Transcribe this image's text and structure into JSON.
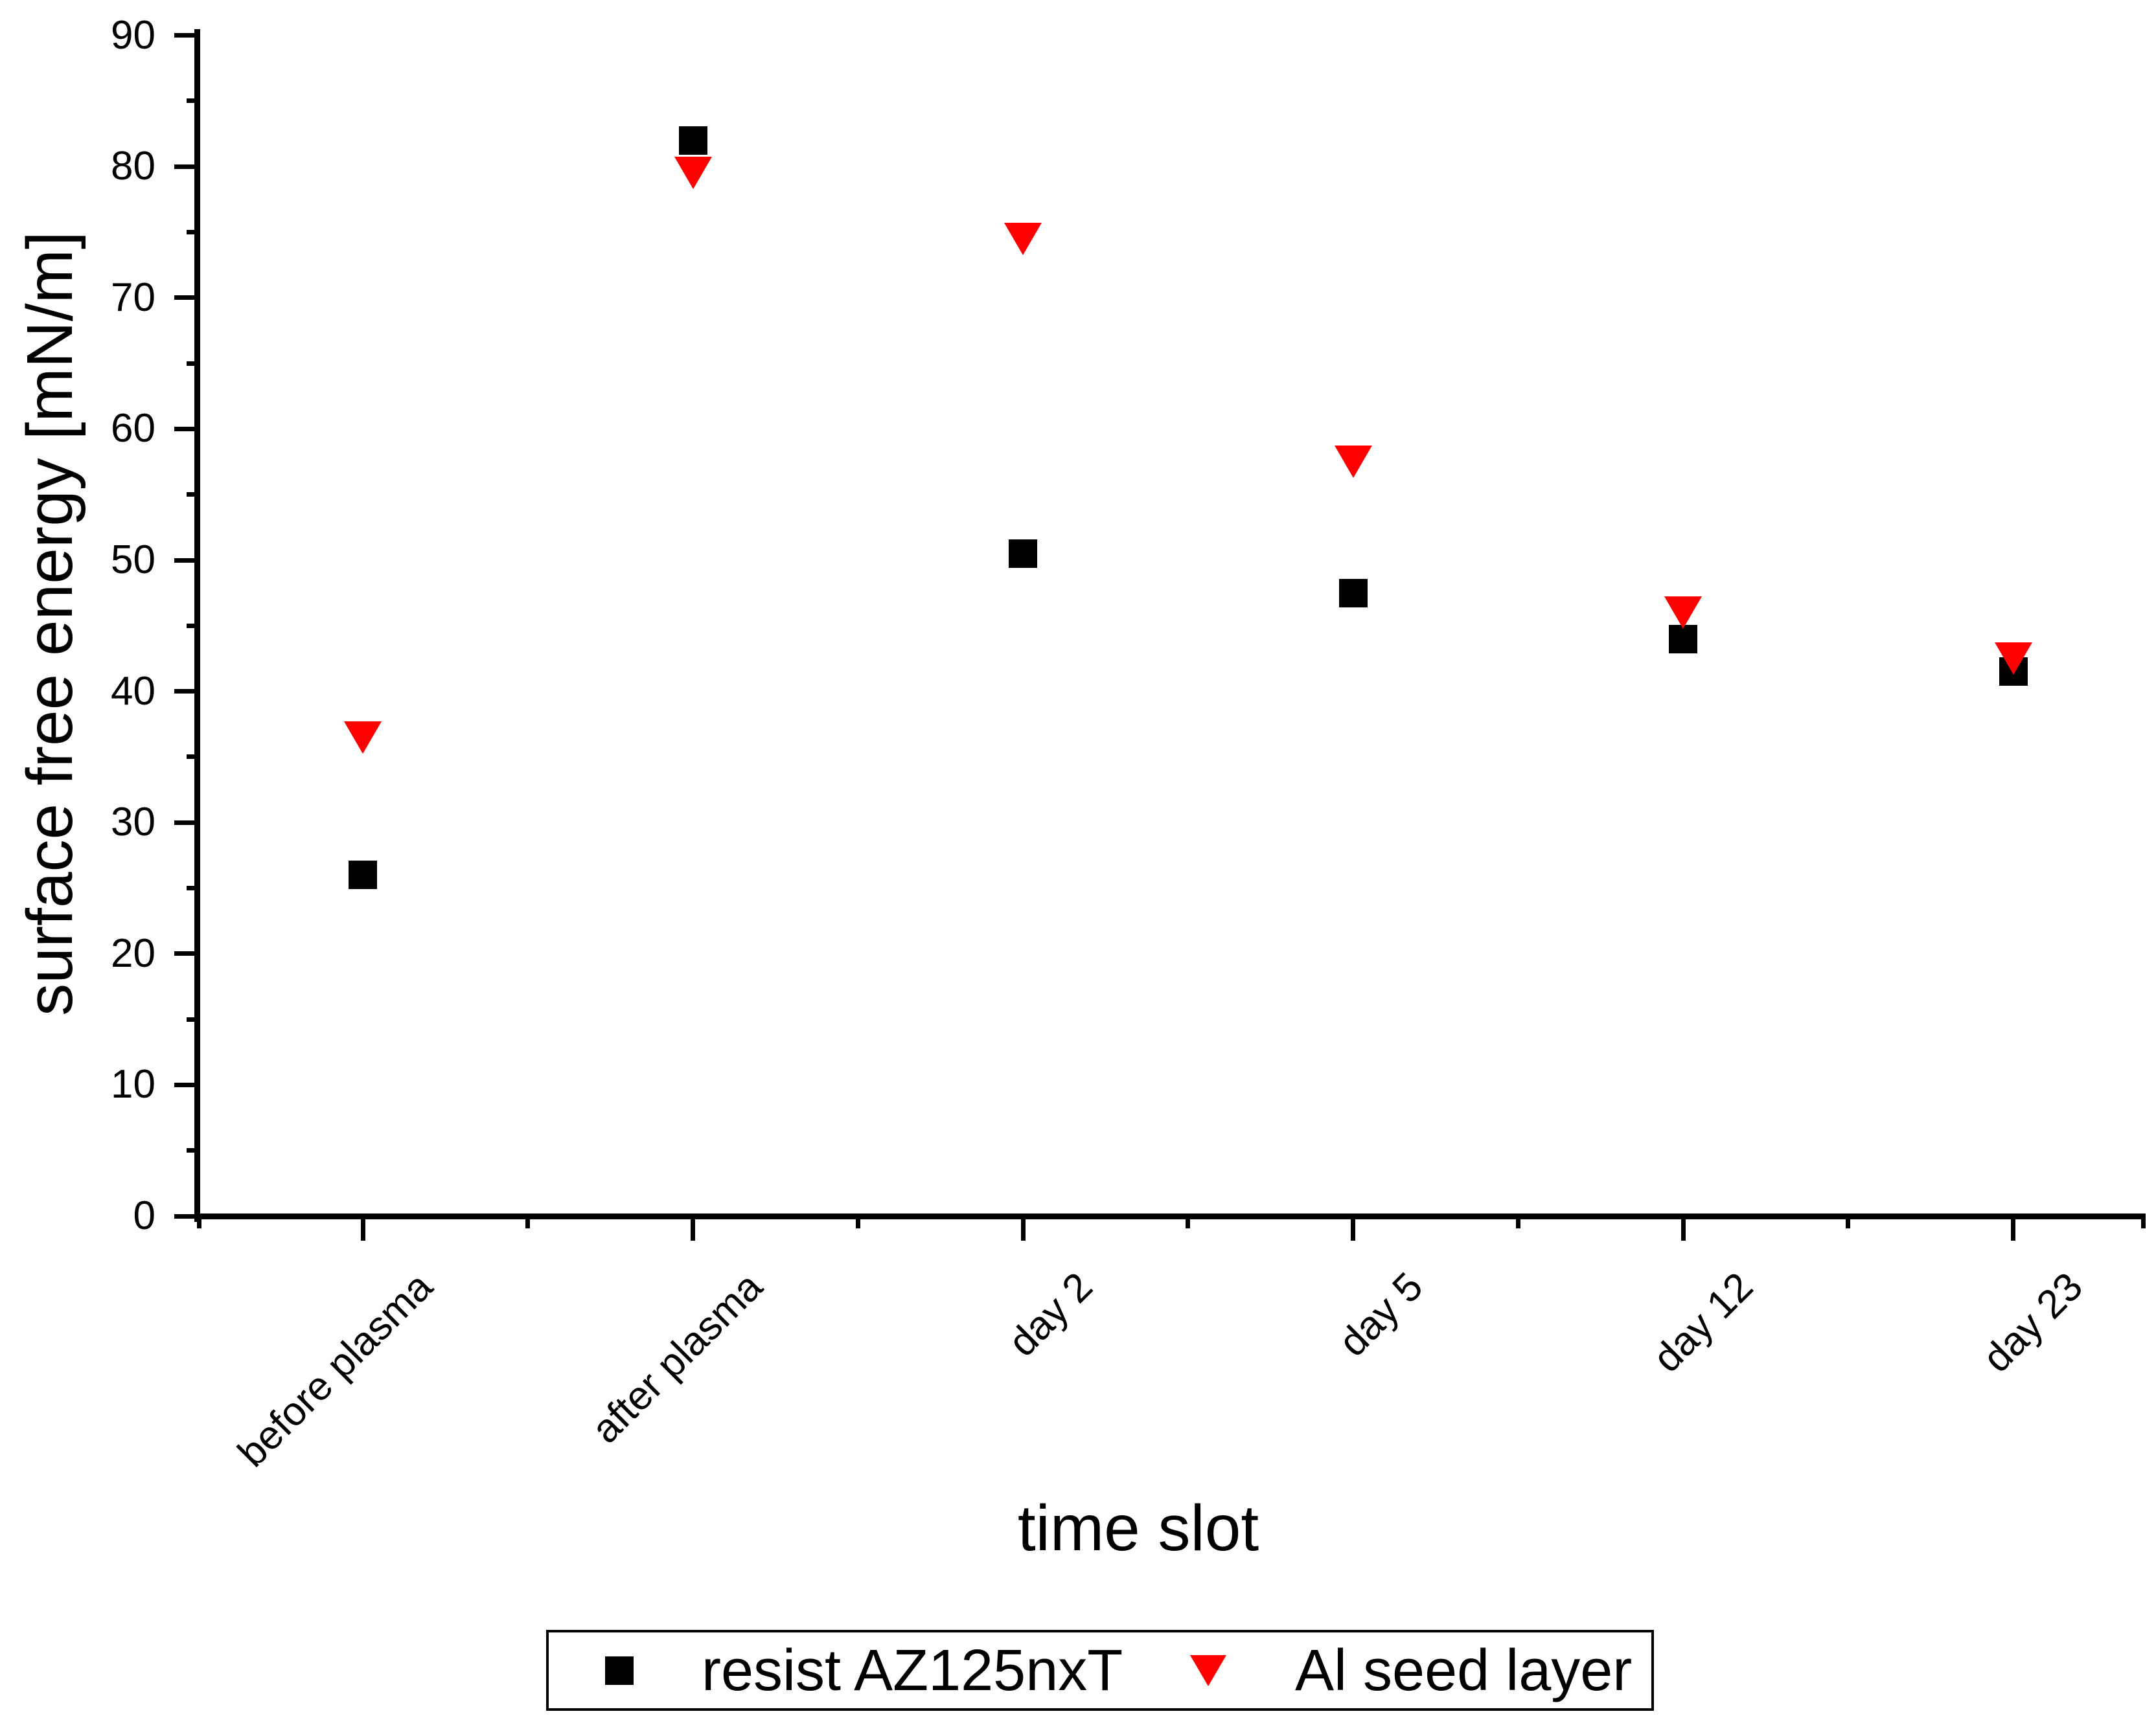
{
  "chart_data": {
    "type": "scatter",
    "title": "",
    "xlabel": "time slot",
    "ylabel": "surface free energy [mN/m]",
    "categories": [
      "before plasma",
      "after plasma",
      "day 2",
      "day 5",
      "day 12",
      "day 23"
    ],
    "series": [
      {
        "name": "resist AZ125nxT",
        "marker": "square",
        "color": "#000000",
        "values": [
          26,
          82,
          50.5,
          47.5,
          44,
          41.5
        ]
      },
      {
        "name": "Al seed layer",
        "marker": "triangle-down",
        "color": "#ff0000",
        "values": [
          36.5,
          79.5,
          74.5,
          57.5,
          46,
          42.5
        ]
      }
    ],
    "y_axis": {
      "min": 0,
      "max": 90,
      "major_step": 10,
      "minor_step": 5,
      "tick_labels": [
        "0",
        "10",
        "20",
        "30",
        "40",
        "50",
        "60",
        "70",
        "80",
        "90"
      ]
    },
    "x_axis": {
      "tick_labels": [
        "before plasma",
        "after plasma",
        "day 2",
        "day 5",
        "day 12",
        "day 23"
      ]
    },
    "grid": false,
    "legend_position": "bottom",
    "background_color": "#ffffff",
    "axis_color": "#000000"
  }
}
